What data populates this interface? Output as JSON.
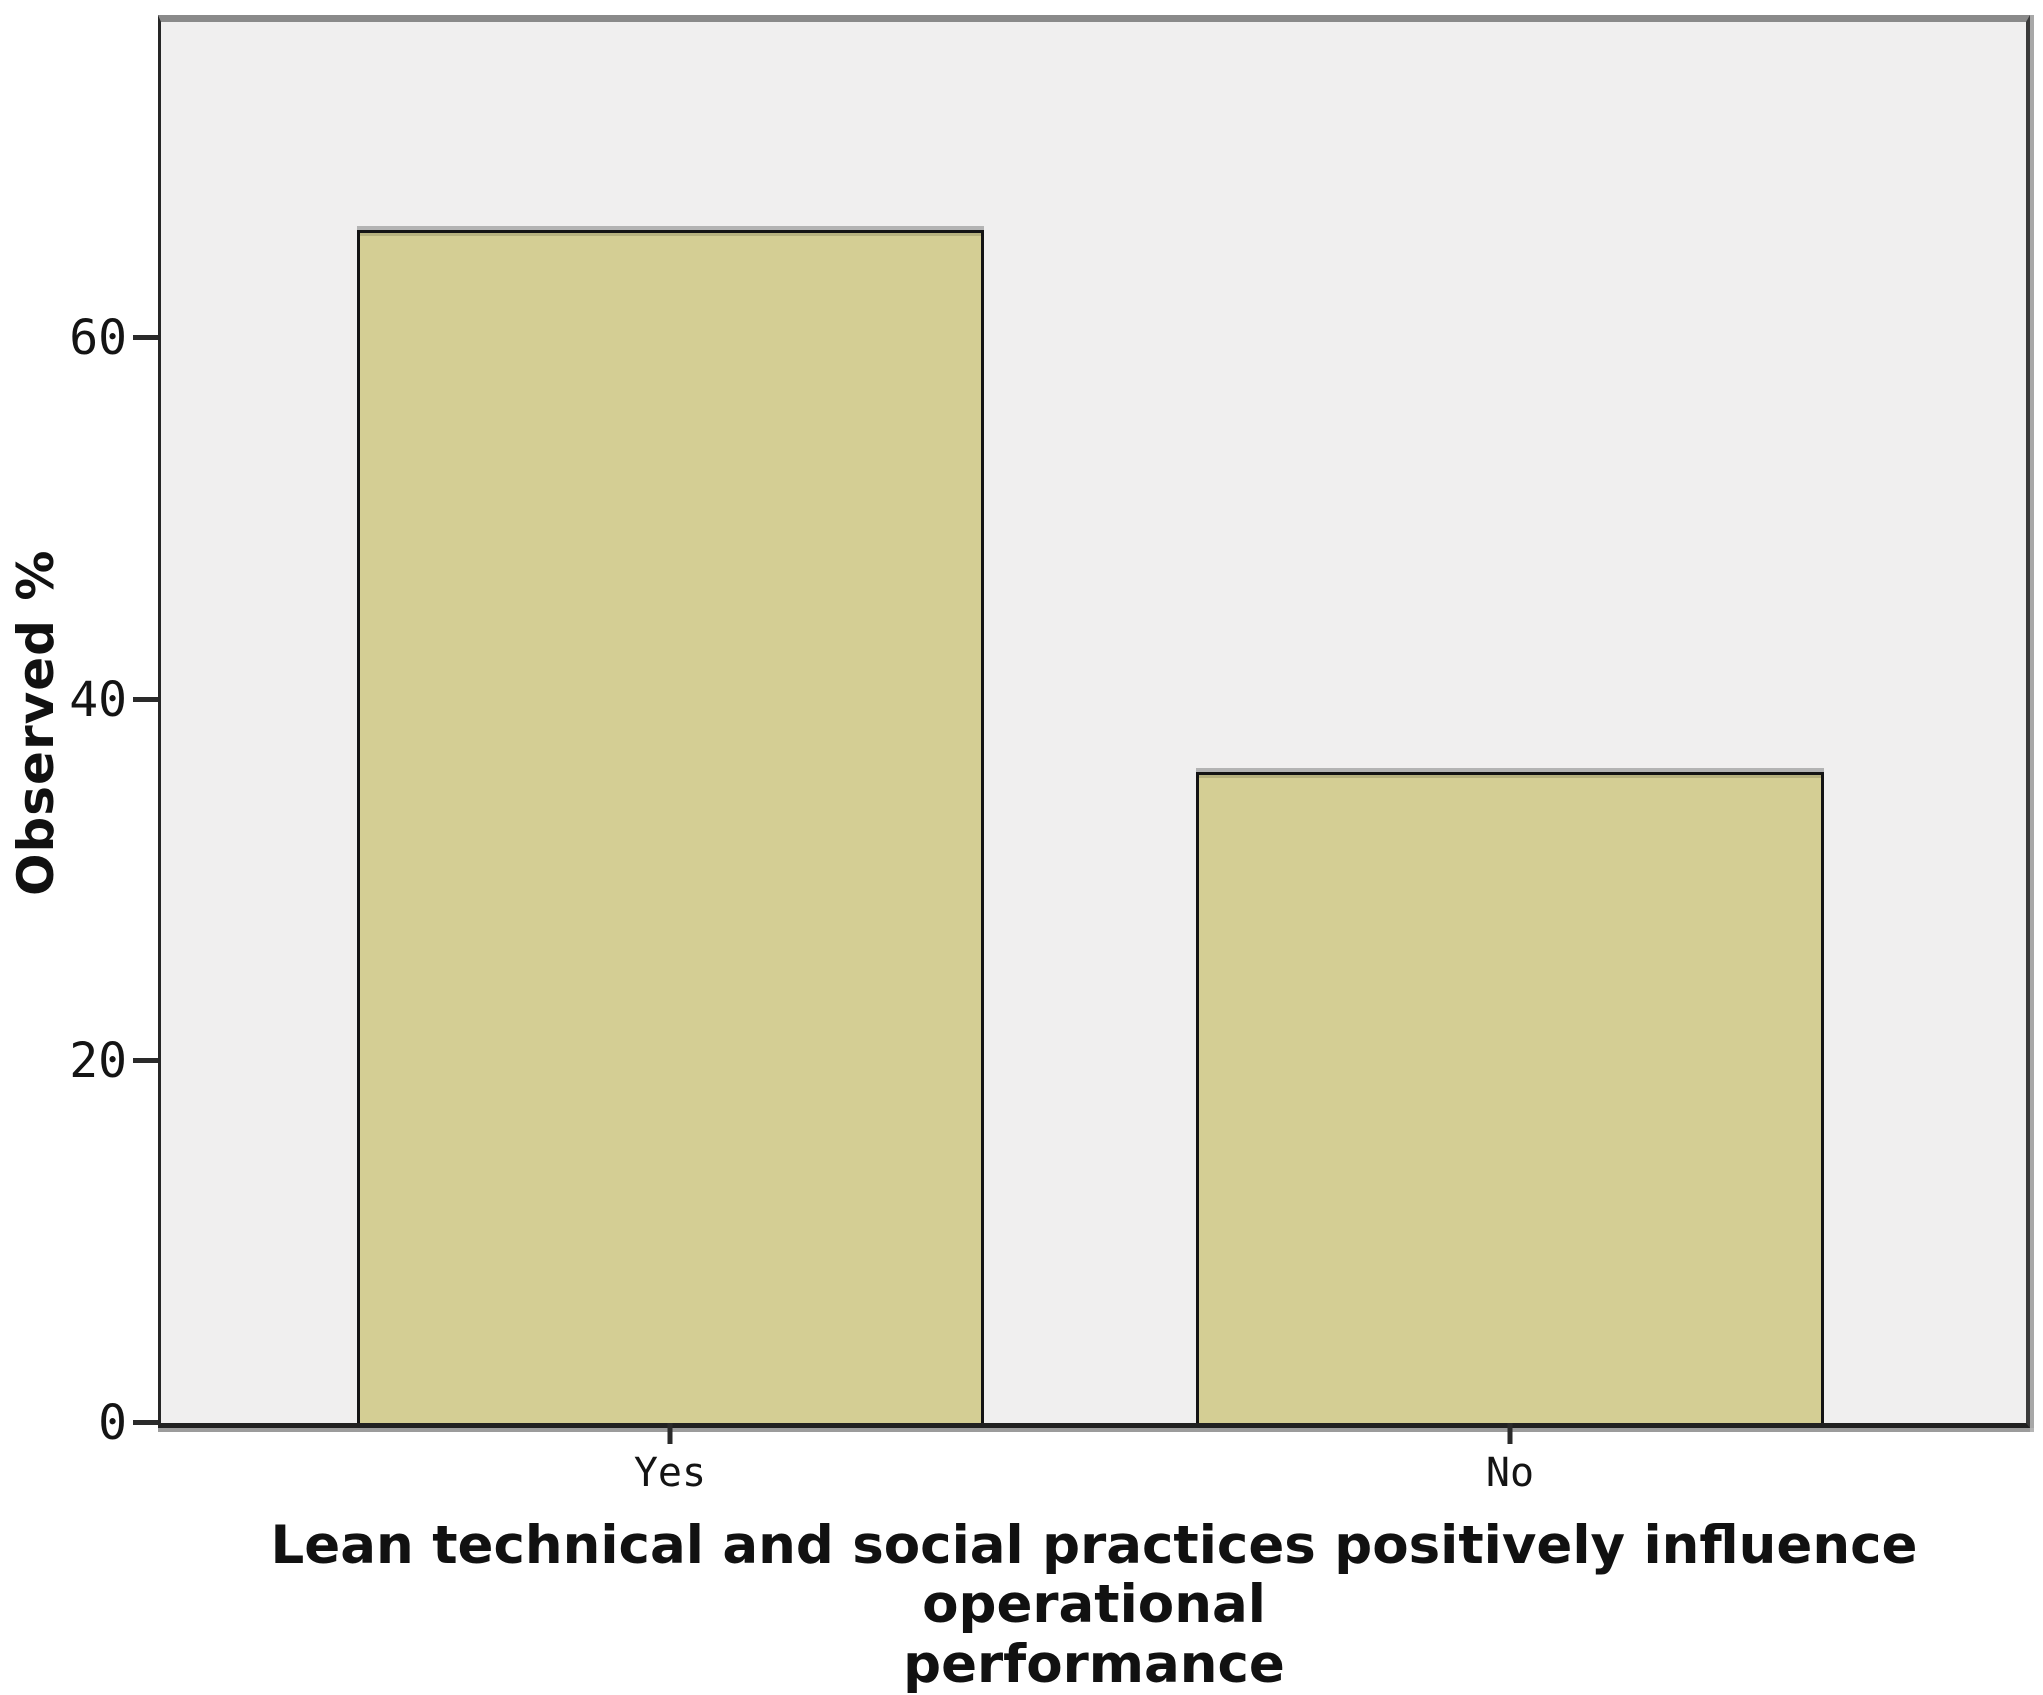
{
  "chart_data": {
    "type": "bar",
    "title": "",
    "categories": [
      "Yes",
      "No"
    ],
    "values": [
      66,
      36
    ],
    "xlabel": "Lean technical and social practices positively influence operational performance",
    "xlabel_lines": [
      "Lean technical and social practices positively influence operational",
      "performance"
    ],
    "ylabel": "Observed %",
    "yticks": [
      0,
      20,
      40,
      60
    ],
    "ylim": [
      0,
      77.5
    ],
    "grid": false,
    "legend": "none",
    "colors": {
      "bar_fill": "#d4ce94",
      "bar_border": "#141414",
      "plot_background": "#f0efef",
      "page_background": "#ffffff",
      "axis_color": "#262626",
      "frame_top_gray": "#8a8a8a",
      "text": "#1a1a1a"
    }
  }
}
